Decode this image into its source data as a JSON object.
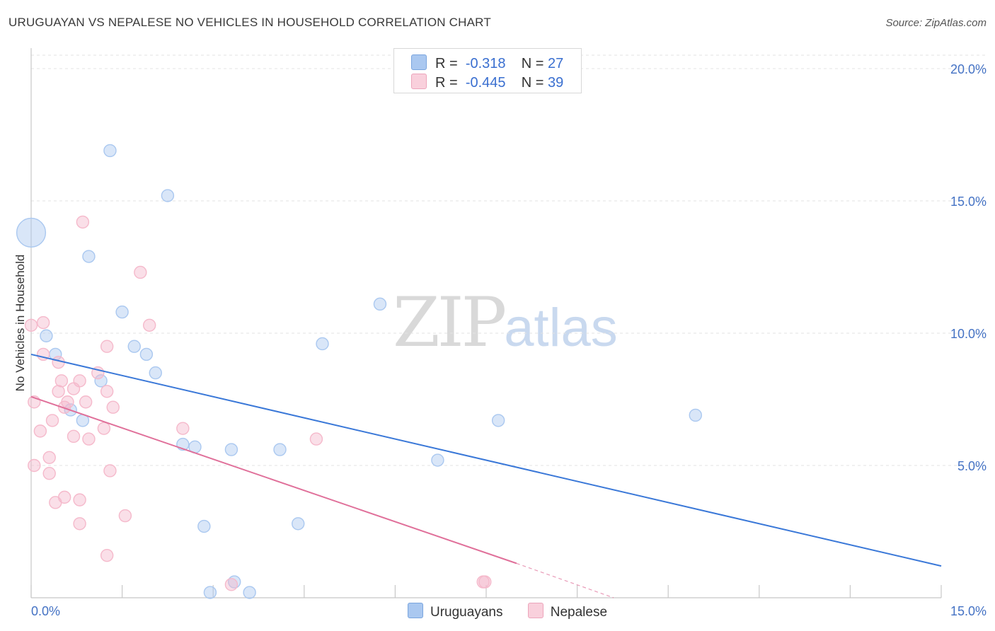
{
  "title": "URUGUAYAN VS NEPALESE NO VEHICLES IN HOUSEHOLD CORRELATION CHART",
  "source": "Source: ZipAtlas.com",
  "watermark": {
    "zip": "ZIP",
    "atlas": "atlas"
  },
  "legend": {
    "rows": [
      {
        "r_label": "R =",
        "r_value": "-0.318",
        "n_label": "N =",
        "n_value": "27",
        "color": "#aac8f0"
      },
      {
        "r_label": "R =",
        "r_value": "-0.445",
        "n_label": "N =",
        "n_value": "39",
        "color": "#f5b9cb"
      }
    ]
  },
  "bottom_legend": [
    {
      "label": "Uruguayans",
      "color": "#aac8f0"
    },
    {
      "label": "Nepalese",
      "color": "#f5b9cb"
    }
  ],
  "chart_data": {
    "type": "scatter",
    "title": "URUGUAYAN VS NEPALESE NO VEHICLES IN HOUSEHOLD CORRELATION CHART",
    "xlabel": "",
    "ylabel": "No Vehicles in Household",
    "xlim": [
      0,
      15
    ],
    "ylim": [
      0,
      20
    ],
    "x_tick_labels": [
      "0.0%",
      "15.0%"
    ],
    "y_tick_labels": [
      "5.0%",
      "10.0%",
      "15.0%",
      "20.0%"
    ],
    "y_tick_values": [
      5,
      10,
      15,
      20
    ],
    "series": [
      {
        "name": "Uruguayans",
        "color": "#3a78d8",
        "fill": "#aac8f0",
        "points": [
          [
            0.0,
            13.8,
            2.4
          ],
          [
            1.3,
            16.9,
            1
          ],
          [
            2.25,
            15.2,
            1
          ],
          [
            0.95,
            12.9,
            1
          ],
          [
            1.5,
            10.8,
            1
          ],
          [
            0.25,
            9.9,
            1
          ],
          [
            0.4,
            9.2,
            1
          ],
          [
            1.7,
            9.5,
            1
          ],
          [
            1.9,
            9.2,
            1
          ],
          [
            2.05,
            8.5,
            1
          ],
          [
            1.15,
            8.2,
            1
          ],
          [
            0.65,
            7.1,
            1
          ],
          [
            0.85,
            6.7,
            1
          ],
          [
            2.5,
            5.8,
            1
          ],
          [
            2.7,
            5.7,
            1
          ],
          [
            3.3,
            5.6,
            1
          ],
          [
            4.1,
            5.6,
            1
          ],
          [
            5.75,
            11.1,
            1
          ],
          [
            4.8,
            9.6,
            1
          ],
          [
            7.7,
            6.7,
            1
          ],
          [
            10.95,
            6.9,
            1
          ],
          [
            6.7,
            5.2,
            1
          ],
          [
            2.85,
            2.7,
            1
          ],
          [
            4.4,
            2.8,
            1
          ],
          [
            3.35,
            0.6,
            1
          ],
          [
            2.95,
            0.2,
            1
          ],
          [
            3.6,
            0.2,
            1
          ]
        ],
        "trend": {
          "x0": 0.0,
          "y0": 9.2,
          "x1": 15.0,
          "y1": 1.2
        }
      },
      {
        "name": "Nepalese",
        "color": "#e0709a",
        "fill": "#f5b9cb",
        "points": [
          [
            0.0,
            10.3,
            1
          ],
          [
            0.2,
            10.4,
            1
          ],
          [
            0.2,
            9.2,
            1
          ],
          [
            0.45,
            8.9,
            1
          ],
          [
            0.5,
            8.2,
            1
          ],
          [
            0.8,
            8.2,
            1
          ],
          [
            0.45,
            7.8,
            1
          ],
          [
            0.7,
            7.9,
            1
          ],
          [
            0.6,
            7.4,
            1
          ],
          [
            0.9,
            7.4,
            1
          ],
          [
            0.05,
            7.4,
            1
          ],
          [
            0.55,
            7.2,
            1
          ],
          [
            0.35,
            6.7,
            1
          ],
          [
            0.15,
            6.3,
            1
          ],
          [
            0.7,
            6.1,
            1
          ],
          [
            0.95,
            6.0,
            1
          ],
          [
            0.05,
            5.0,
            1
          ],
          [
            0.3,
            5.3,
            1
          ],
          [
            0.3,
            4.7,
            1
          ],
          [
            0.55,
            3.8,
            1
          ],
          [
            0.8,
            3.7,
            1
          ],
          [
            0.4,
            3.6,
            1
          ],
          [
            0.8,
            2.8,
            1
          ],
          [
            1.25,
            7.8,
            1
          ],
          [
            1.35,
            7.2,
            1
          ],
          [
            1.1,
            8.5,
            1
          ],
          [
            1.25,
            9.5,
            1
          ],
          [
            1.2,
            6.4,
            1
          ],
          [
            1.3,
            4.8,
            1
          ],
          [
            1.55,
            3.1,
            1
          ],
          [
            1.25,
            1.6,
            1
          ],
          [
            0.85,
            14.2,
            1
          ],
          [
            1.8,
            12.3,
            1
          ],
          [
            1.95,
            10.3,
            1
          ],
          [
            2.5,
            6.4,
            1
          ],
          [
            4.7,
            6.0,
            1
          ],
          [
            3.3,
            0.5,
            1
          ],
          [
            7.45,
            0.6,
            1
          ],
          [
            7.48,
            0.6,
            1
          ]
        ],
        "trend": {
          "x0": 0.0,
          "y0": 7.6,
          "x1": 8.0,
          "y1": 1.3
        },
        "trend_dashed": {
          "x0": 8.0,
          "y0": 1.3,
          "x1": 9.6,
          "y1": 0.0
        }
      }
    ]
  }
}
